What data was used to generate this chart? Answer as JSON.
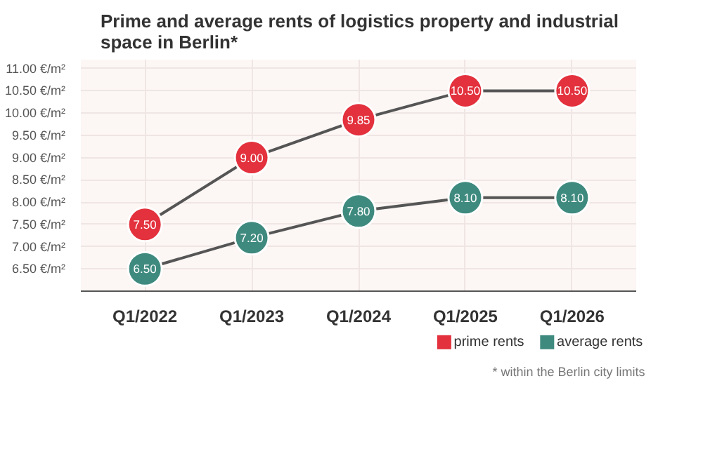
{
  "chart_data": {
    "type": "line",
    "title": "Prime and average rents of logistics property and industrial space in Berlin*",
    "categories": [
      "Q1/2022",
      "Q1/2023",
      "Q1/2024",
      "Q1/2025",
      "Q1/2026"
    ],
    "series": [
      {
        "name": "prime rents",
        "color": "#e3313d",
        "values": [
          7.5,
          9.0,
          9.85,
          10.5,
          10.5
        ],
        "value_labels": [
          "7.50",
          "9.00",
          "9.85",
          "10.50",
          "10.50"
        ]
      },
      {
        "name": "average rents",
        "color": "#3f8a7f",
        "values": [
          6.5,
          7.2,
          7.8,
          8.1,
          8.1
        ],
        "value_labels": [
          "6.50",
          "7.20",
          "7.80",
          "8.10",
          "8.10"
        ]
      }
    ],
    "ylim": [
      6.0,
      11.2
    ],
    "yticks": [
      {
        "value": 6.5,
        "label": "6.50 €/m²"
      },
      {
        "value": 7.0,
        "label": "7.00 €/m²"
      },
      {
        "value": 7.5,
        "label": "7.50 €/m²"
      },
      {
        "value": 8.0,
        "label": "8.00 €/m²"
      },
      {
        "value": 8.5,
        "label": "8.50 €/m²"
      },
      {
        "value": 9.0,
        "label": "9.00 €/m²"
      },
      {
        "value": 9.5,
        "label": "9.50 €/m²"
      },
      {
        "value": 10.0,
        "label": "10.00 €/m²"
      },
      {
        "value": 10.5,
        "label": "10.50 €/m²"
      },
      {
        "value": 11.0,
        "label": "11.00 €/m²"
      }
    ],
    "data_labels": true,
    "marker": "circle",
    "grid": true,
    "legend": "bottom right",
    "annotations": [
      "* within the Berlin city limits"
    ]
  }
}
